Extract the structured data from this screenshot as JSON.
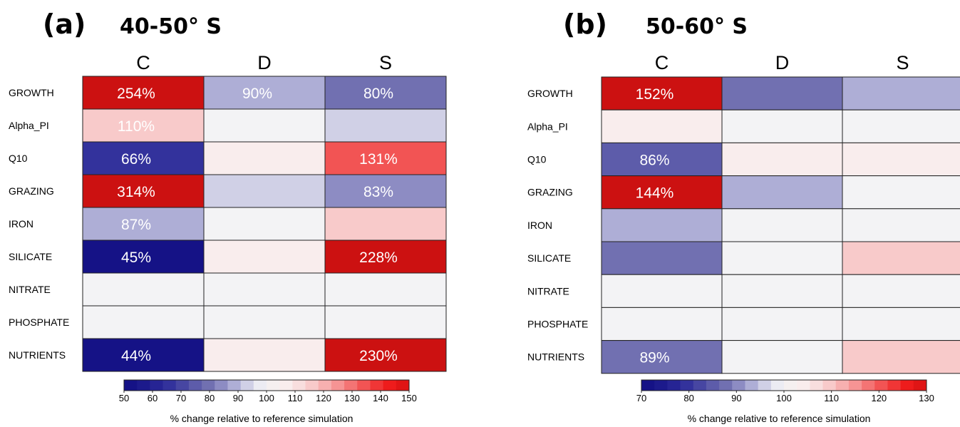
{
  "chart_data": [
    {
      "type": "heatmap",
      "panel_label": "(a)",
      "title": "40-50° S",
      "columns": [
        "C",
        "D",
        "S"
      ],
      "rows": [
        "GROWTH",
        "Alpha_PI",
        "Q10",
        "GRAZING",
        "IRON",
        "SILICATE",
        "NITRATE",
        "PHOSPHATE",
        "NUTRIENTS"
      ],
      "values": [
        [
          254,
          90,
          80
        ],
        [
          110,
          100,
          92
        ],
        [
          66,
          102,
          131
        ],
        [
          314,
          92,
          83
        ],
        [
          87,
          100,
          110
        ],
        [
          45,
          102,
          228
        ],
        [
          100,
          100,
          100
        ],
        [
          100,
          100,
          100
        ],
        [
          44,
          102,
          230
        ]
      ],
      "labels": [
        [
          "254%",
          "90%",
          "80%"
        ],
        [
          "110%",
          "",
          ""
        ],
        [
          "66%",
          "",
          "131%"
        ],
        [
          "314%",
          "",
          "83%"
        ],
        [
          "87%",
          "",
          ""
        ],
        [
          "45%",
          "",
          "228%"
        ],
        [
          "",
          "",
          ""
        ],
        [
          "",
          "",
          ""
        ],
        [
          "44%",
          "",
          "230%"
        ]
      ],
      "colorbar": {
        "min": 50,
        "max": 150,
        "ticks": [
          50,
          60,
          70,
          80,
          90,
          100,
          110,
          120,
          130,
          140,
          150
        ],
        "label": "% change relative to reference simulation"
      }
    },
    {
      "type": "heatmap",
      "panel_label": "(b)",
      "title": "50-60° S",
      "columns": [
        "C",
        "D",
        "S"
      ],
      "rows": [
        "GROWTH",
        "Alpha_PI",
        "Q10",
        "GRAZING",
        "IRON",
        "SILICATE",
        "NITRATE",
        "PHOSPHATE",
        "NUTRIENTS"
      ],
      "values": [
        [
          152,
          88,
          94
        ],
        [
          102,
          100,
          100
        ],
        [
          86,
          102,
          102
        ],
        [
          144,
          94,
          100
        ],
        [
          92,
          100,
          100
        ],
        [
          88,
          100,
          106
        ],
        [
          100,
          100,
          100
        ],
        [
          100,
          100,
          100
        ],
        [
          89,
          100,
          106
        ]
      ],
      "labels": [
        [
          "152%",
          "",
          ""
        ],
        [
          "",
          "",
          ""
        ],
        [
          "86%",
          "",
          ""
        ],
        [
          "144%",
          "",
          ""
        ],
        [
          "",
          "",
          ""
        ],
        [
          "",
          "",
          ""
        ],
        [
          "",
          "",
          ""
        ],
        [
          "",
          "",
          ""
        ],
        [
          "89%",
          "",
          ""
        ]
      ],
      "colorbar": {
        "min": 70,
        "max": 130,
        "ticks": [
          70,
          80,
          90,
          100,
          110,
          120,
          130
        ],
        "label": "% change relative to reference simulation"
      }
    }
  ]
}
